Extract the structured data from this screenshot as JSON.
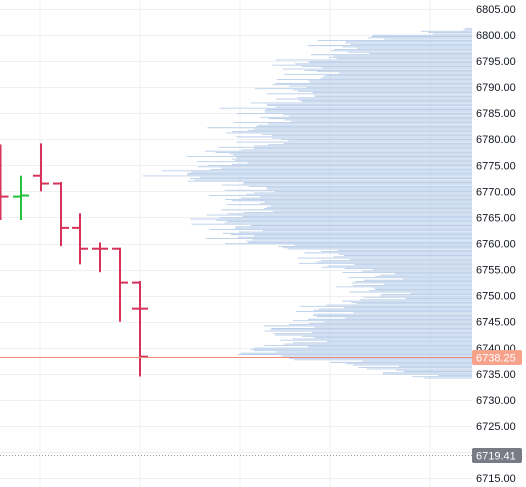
{
  "chart_data": {
    "type": "ohlc-with-volume-profile",
    "title": "",
    "xlabel": "",
    "ylabel": "",
    "ylim": [
      6713.3,
      6806.7
    ],
    "grid": true,
    "y_ticks": [
      "6805.00",
      "6800.00",
      "6795.00",
      "6790.00",
      "6785.00",
      "6780.00",
      "6775.00",
      "6770.00",
      "6765.00",
      "6760.00",
      "6755.00",
      "6750.00",
      "6745.00",
      "6740.00",
      "6735.00",
      "6730.00",
      "6725.00",
      "6720.00",
      "6715.00"
    ],
    "bars": [
      {
        "o": 6770.0,
        "h": 6779.0,
        "l": 6764.5,
        "c": 6769.0,
        "dir": "down"
      },
      {
        "o": 6769.0,
        "h": 6773.0,
        "l": 6764.5,
        "c": 6769.2,
        "dir": "up"
      },
      {
        "o": 6773.0,
        "h": 6779.2,
        "l": 6770.0,
        "c": 6771.5,
        "dir": "down"
      },
      {
        "o": 6771.5,
        "h": 6771.8,
        "l": 6759.5,
        "c": 6763.0,
        "dir": "down"
      },
      {
        "o": 6763.0,
        "h": 6765.8,
        "l": 6756.0,
        "c": 6759.0,
        "dir": "down"
      },
      {
        "o": 6759.0,
        "h": 6760.2,
        "l": 6754.5,
        "c": 6759.0,
        "dir": "down"
      },
      {
        "o": 6759.0,
        "h": 6759.2,
        "l": 6745.0,
        "c": 6752.5,
        "dir": "down"
      },
      {
        "o": 6752.5,
        "h": 6752.8,
        "l": 6734.5,
        "c": 6747.5,
        "dir": "down"
      },
      {
        "o": 6747.5,
        "h": 6747.8,
        "l": 6735.0,
        "c": 6738.3,
        "dir": "down"
      }
    ],
    "volume_profile": {
      "price_low": 6734.2,
      "price_high": 6801.2,
      "step": 0.25,
      "anchors": [
        [
          6734.2,
          0.1
        ],
        [
          6735.5,
          0.2
        ],
        [
          6737.0,
          0.4
        ],
        [
          6738.5,
          0.6
        ],
        [
          6740.5,
          0.56
        ],
        [
          6743.0,
          0.52
        ],
        [
          6745.5,
          0.5
        ],
        [
          6747.5,
          0.4
        ],
        [
          6750.0,
          0.3
        ],
        [
          6752.5,
          0.28
        ],
        [
          6755.0,
          0.36
        ],
        [
          6757.5,
          0.42
        ],
        [
          6760.0,
          0.6
        ],
        [
          6762.5,
          0.74
        ],
        [
          6765.0,
          0.7
        ],
        [
          6767.5,
          0.66
        ],
        [
          6770.0,
          0.62
        ],
        [
          6772.5,
          0.82
        ],
        [
          6775.0,
          0.78
        ],
        [
          6777.5,
          0.68
        ],
        [
          6780.0,
          0.62
        ],
        [
          6782.5,
          0.64
        ],
        [
          6785.0,
          0.6
        ],
        [
          6787.5,
          0.56
        ],
        [
          6790.0,
          0.5
        ],
        [
          6792.5,
          0.5
        ],
        [
          6795.0,
          0.46
        ],
        [
          6797.5,
          0.4
        ],
        [
          6800.0,
          0.25
        ],
        [
          6801.2,
          0.05
        ]
      ],
      "color": "#b9cde9"
    },
    "last_price": {
      "value": "6738.25",
      "num": 6738.25,
      "color": "#f7a28a",
      "line_color": "#f28b76"
    },
    "other_price": {
      "value": "6719.41",
      "num": 6719.41,
      "color": "#787b86"
    },
    "colors": {
      "up": "#22c33b",
      "down": "#d6335b",
      "grid": "#eef0f3",
      "axis_text": "#131722"
    }
  }
}
